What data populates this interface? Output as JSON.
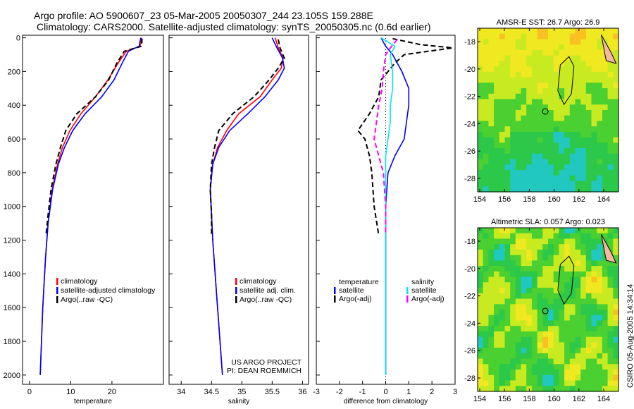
{
  "title": {
    "line1": "Argo profile: AO 5900607_23 05-Mar-2005 20050307_244 23.105S 159.288E",
    "line2": "Climatology: CARS2000. Satellite-adjusted climatology: synTS_20050305.nc (0.6d earlier)"
  },
  "colors": {
    "climatology": "#ff0000",
    "satellite": "#0000ff",
    "argo": "#000000",
    "sal_satellite": "#00e5f0",
    "sal_argo": "#ff00ff"
  },
  "chart_data": [
    {
      "type": "line",
      "id": "temperature",
      "xlabel": "temperature",
      "ylabel": "",
      "xlim": [
        -1.7,
        32.5
      ],
      "ylim": [
        2055,
        -15
      ],
      "xticks": [
        0,
        10,
        20
      ],
      "yticks": [
        0,
        200,
        400,
        600,
        800,
        1000,
        1200,
        1400,
        1600,
        1800,
        2000
      ],
      "legend": {
        "placement": "bottom-center",
        "entries": [
          "climatology",
          "satellite-adjusted climatology",
          "Argo(..raw -QC)"
        ]
      },
      "series": [
        {
          "name": "climatology",
          "color": "#ff0000",
          "dash": false,
          "depth": [
            0,
            50,
            80,
            150,
            250,
            350,
            450,
            550,
            650,
            750,
            900,
            1100,
            1300,
            1600,
            2000
          ],
          "values": [
            27.2,
            26.8,
            23.5,
            21.5,
            19,
            16,
            12.5,
            9.8,
            8,
            6.8,
            5.5,
            4.5,
            3.9,
            3.2,
            2.6
          ]
        },
        {
          "name": "satellite-adjusted climatology",
          "color": "#0000ff",
          "dash": false,
          "depth": [
            0,
            50,
            80,
            150,
            250,
            350,
            450,
            550,
            650,
            750,
            900,
            1100,
            1300,
            1600,
            2000
          ],
          "values": [
            27,
            26.6,
            24,
            22.5,
            20.5,
            17.5,
            13.5,
            10.5,
            8.5,
            7,
            5.6,
            4.5,
            3.9,
            3.2,
            2.6
          ]
        },
        {
          "name": "Argo(..raw -QC)",
          "color": "#000000",
          "dash": true,
          "depth": [
            5,
            50,
            80,
            150,
            250,
            350,
            450,
            550,
            650,
            750,
            900,
            1050,
            1170
          ],
          "values": [
            27.3,
            27.2,
            23,
            21.2,
            19.2,
            16,
            11.5,
            8.8,
            7.5,
            6.4,
            5.2,
            4.5,
            4
          ]
        }
      ]
    },
    {
      "type": "line",
      "id": "salinity",
      "xlabel": "salinity",
      "xlim": [
        33.8,
        36.1
      ],
      "ylim": [
        2055,
        -15
      ],
      "xticks": [
        34,
        34.5,
        35,
        35.5,
        36
      ],
      "legend": {
        "placement": "bottom-center",
        "entries": [
          "climatology",
          "satellite adj. clim.",
          "Argo(..raw -QC)"
        ]
      },
      "annotation": [
        "US ARGO PROJECT",
        "PI: DEAN ROEMMICH"
      ],
      "series": [
        {
          "name": "climatology",
          "color": "#ff0000",
          "dash": false,
          "depth": [
            0,
            60,
            120,
            180,
            250,
            350,
            450,
            550,
            650,
            750,
            900,
            1200,
            1500,
            2000
          ],
          "values": [
            35.55,
            35.6,
            35.68,
            35.65,
            35.5,
            35.3,
            34.95,
            34.75,
            34.6,
            34.52,
            34.48,
            34.52,
            34.58,
            34.68
          ]
        },
        {
          "name": "satellite adj. clim.",
          "color": "#0000ff",
          "dash": false,
          "depth": [
            0,
            60,
            120,
            180,
            250,
            350,
            450,
            550,
            650,
            750,
            900,
            1200,
            1500,
            2000
          ],
          "values": [
            35.5,
            35.58,
            35.67,
            35.7,
            35.6,
            35.38,
            35.1,
            34.8,
            34.62,
            34.52,
            34.48,
            34.52,
            34.58,
            34.68
          ]
        },
        {
          "name": "Argo(..raw -QC)",
          "color": "#000000",
          "dash": true,
          "depth": [
            10,
            60,
            120,
            180,
            250,
            350,
            450,
            550,
            650,
            750,
            900,
            1050,
            1170
          ],
          "values": [
            35.6,
            35.63,
            35.7,
            35.6,
            35.45,
            35.2,
            34.85,
            34.62,
            34.55,
            34.5,
            34.48,
            34.5,
            34.5
          ]
        }
      ]
    },
    {
      "type": "line",
      "id": "difference",
      "xlabel": "difference from climatology",
      "xlim": [
        -3,
        3
      ],
      "ylim": [
        2055,
        -15
      ],
      "xticks": [
        -3,
        -2,
        -1,
        0,
        1,
        2,
        3
      ],
      "legend": {
        "placement": "bottom-center",
        "temperature_title": "temperature",
        "salinity_title": "salinity",
        "entries": [
          "satellite",
          "Argo(-adj)",
          "satellite",
          "Argo(-adj)"
        ]
      },
      "series": [
        {
          "name": "temperature satellite",
          "color": "#0000ff",
          "dash": false,
          "depth": [
            0,
            50,
            100,
            200,
            300,
            400,
            500,
            600,
            700,
            800,
            1000,
            1300,
            1600,
            2000
          ],
          "values": [
            -0.2,
            0,
            0.3,
            0.7,
            1,
            1,
            0.9,
            0.8,
            0.4,
            0.1,
            0,
            0,
            0,
            0
          ]
        },
        {
          "name": "temperature Argo(-adj)",
          "color": "#000000",
          "dash": true,
          "depth": [
            5,
            40,
            60,
            100,
            150,
            250,
            350,
            450,
            550,
            600,
            700,
            800,
            1000,
            1170
          ],
          "values": [
            0.3,
            1.5,
            2.9,
            0.8,
            0.4,
            -0.2,
            -0.3,
            -0.7,
            -1.2,
            -0.9,
            -0.7,
            -0.6,
            -0.5,
            -0.3
          ]
        },
        {
          "name": "salinity satellite",
          "color": "#00e5f0",
          "dash": false,
          "depth": [
            0,
            50,
            100,
            200,
            300,
            400,
            500,
            600,
            700,
            800,
            1000,
            1400,
            2000
          ],
          "values": [
            -0.2,
            0.4,
            0.2,
            0.3,
            0.3,
            0.2,
            0.2,
            0.1,
            0,
            0,
            0,
            0,
            0
          ]
        },
        {
          "name": "salinity Argo(-adj)",
          "color": "#ff00ff",
          "dash": true,
          "depth": [
            10,
            60,
            100,
            200,
            300,
            400,
            500,
            600,
            700,
            800,
            1000,
            1170
          ],
          "values": [
            0.5,
            0.2,
            0,
            -0.1,
            -0.15,
            -0.3,
            -0.4,
            -0.5,
            -0.3,
            -0.1,
            0,
            0
          ]
        }
      ]
    }
  ],
  "maps": [
    {
      "title": "AMSR-E SST: 26.7 Argo: 26.9",
      "xticks": [
        154,
        156,
        158,
        160,
        162,
        164
      ],
      "yticks": [
        -18,
        -20,
        -22,
        -24,
        -26,
        -28
      ]
    },
    {
      "title": "Altimetric SLA: 0.057 Argo: 0.023",
      "xticks": [
        154,
        156,
        158,
        160,
        162,
        164
      ],
      "yticks": [
        -18,
        -20,
        -22,
        -24,
        -26,
        -28
      ]
    }
  ],
  "footer": "CSIRO 05-Aug-2005 14:34:14"
}
